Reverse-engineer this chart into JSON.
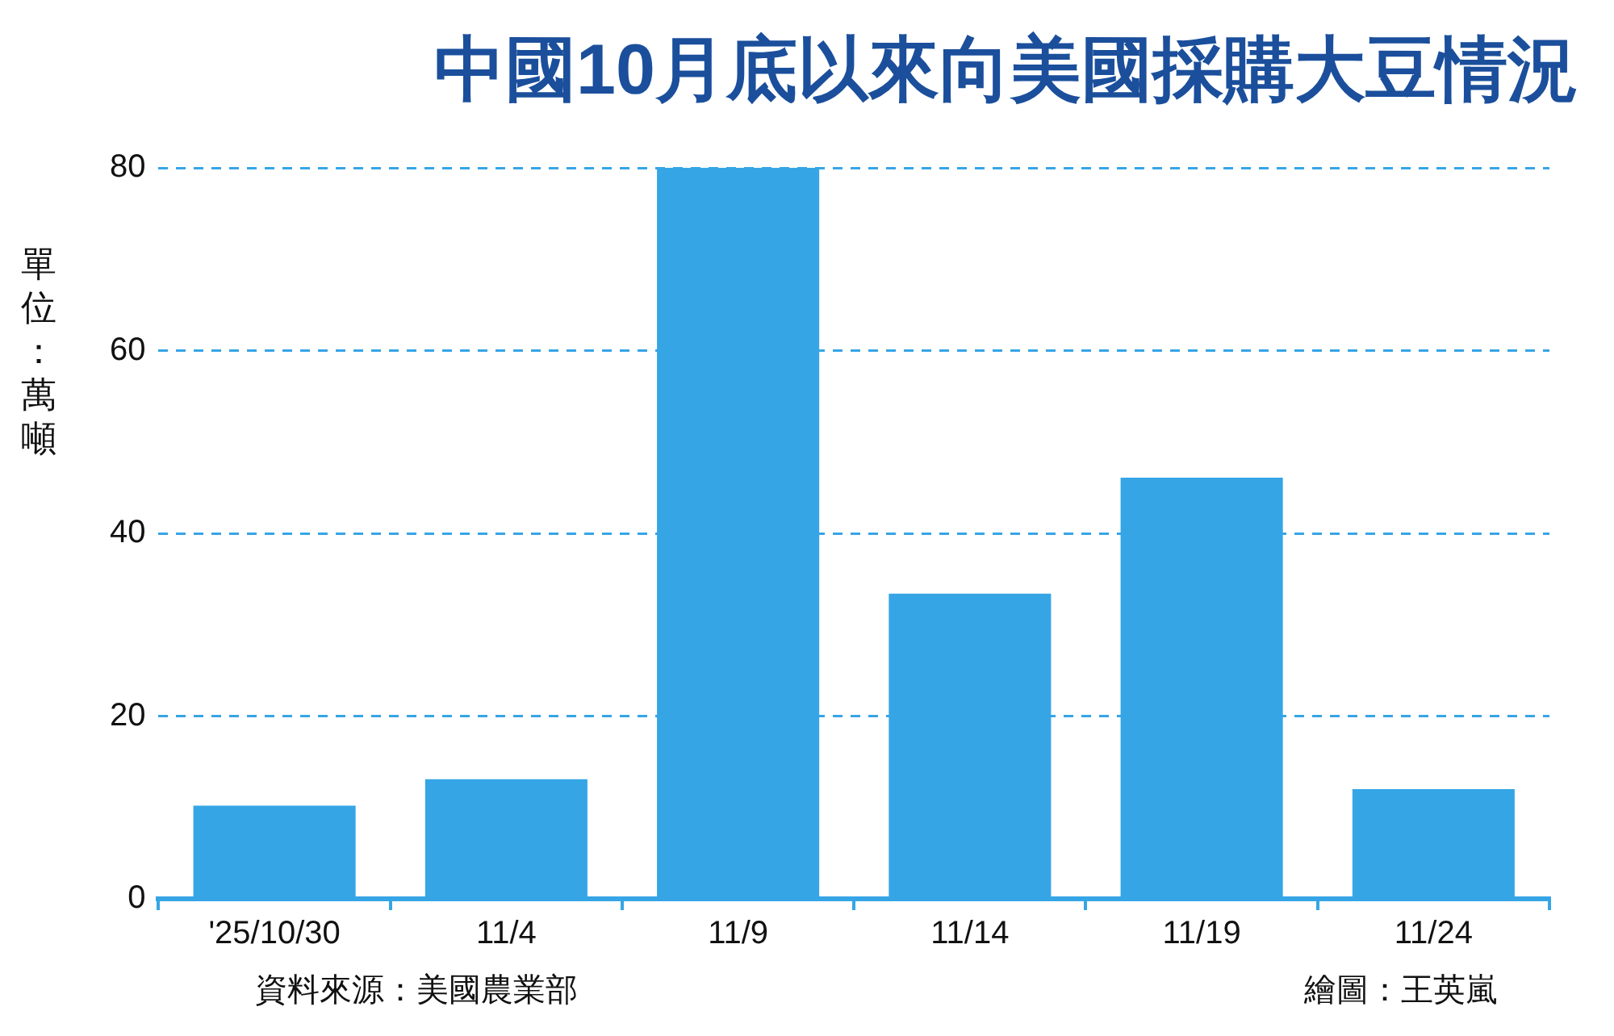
{
  "chart_data": {
    "type": "bar",
    "title": "中國10月底以來向美國採購大豆情況",
    "ylabel": "單位：萬噸",
    "categories": [
      "'25/10/30",
      "11/4",
      "11/9",
      "11/14",
      "11/19",
      "11/24"
    ],
    "values": [
      10.2,
      13.1,
      80,
      33.4,
      46.1,
      12.0
    ],
    "color": "#36a5e6",
    "ylim": [
      0,
      80
    ],
    "yticks": [
      0,
      20,
      40,
      60,
      80
    ],
    "grid": "y",
    "legend": false,
    "annotations": [
      "資料來源：美國農業部",
      "繪圖：王英嵐"
    ]
  }
}
